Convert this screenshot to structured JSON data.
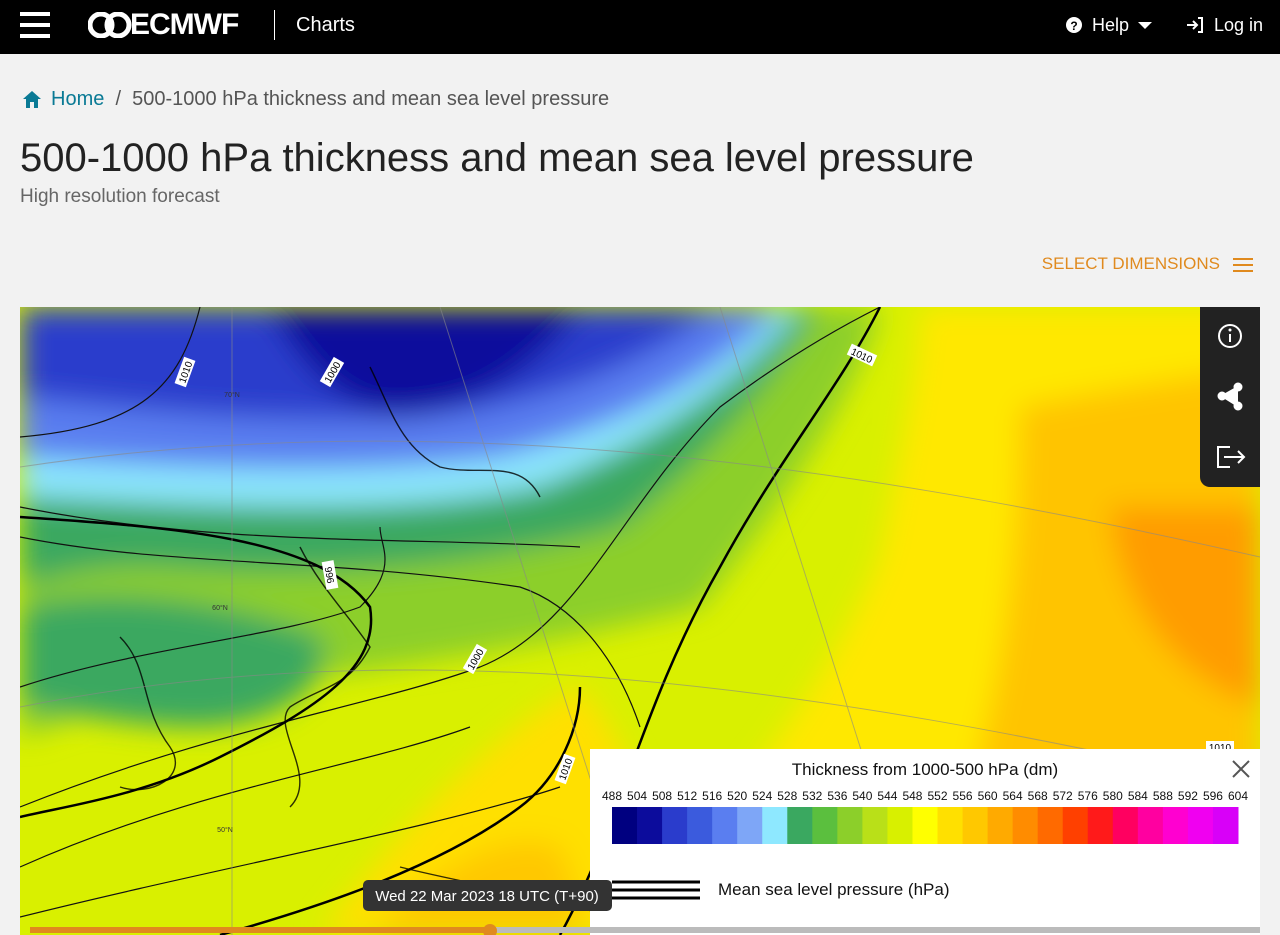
{
  "header": {
    "logo": "ECMWF",
    "section": "Charts",
    "help": "Help",
    "login": "Log in"
  },
  "breadcrumb": {
    "home": "Home",
    "current": "500-1000 hPa thickness and mean sea level pressure"
  },
  "page": {
    "title": "500-1000 hPa thickness and mean sea level pressure",
    "subtitle": "High resolution forecast",
    "select": "SELECT DIMENSIONS"
  },
  "map": {
    "contour_labels": [
      "1010",
      "1000",
      "1010",
      "996",
      "1000",
      "1010",
      "1010"
    ],
    "lat_labels": [
      "70°N",
      "60°N",
      "50°N"
    ],
    "time": "Wed 22 Mar 2023 18 UTC (T+90)"
  },
  "legend": {
    "title": "Thickness from 1000-500 hPa (dm)",
    "levels": [
      488,
      504,
      508,
      512,
      516,
      520,
      524,
      528,
      532,
      536,
      540,
      544,
      548,
      552,
      556,
      560,
      564,
      568,
      572,
      576,
      580,
      584,
      588,
      592,
      596,
      604
    ],
    "colors": [
      "#000080",
      "#0c0c9c",
      "#2a3ccc",
      "#3b5bdd",
      "#5a7ef0",
      "#7ea6f7",
      "#8ee8ff",
      "#3aa860",
      "#5bbf3e",
      "#8ccf2a",
      "#b9e018",
      "#d8f000",
      "#ffff00",
      "#ffe000",
      "#ffc800",
      "#ffaa00",
      "#ff8c00",
      "#ff6a00",
      "#ff4000",
      "#ff1a1a",
      "#ff0060",
      "#ff00a0",
      "#ff00d0",
      "#f000f0",
      "#d800f8"
    ],
    "line_label": "Mean sea level pressure (hPa)"
  }
}
